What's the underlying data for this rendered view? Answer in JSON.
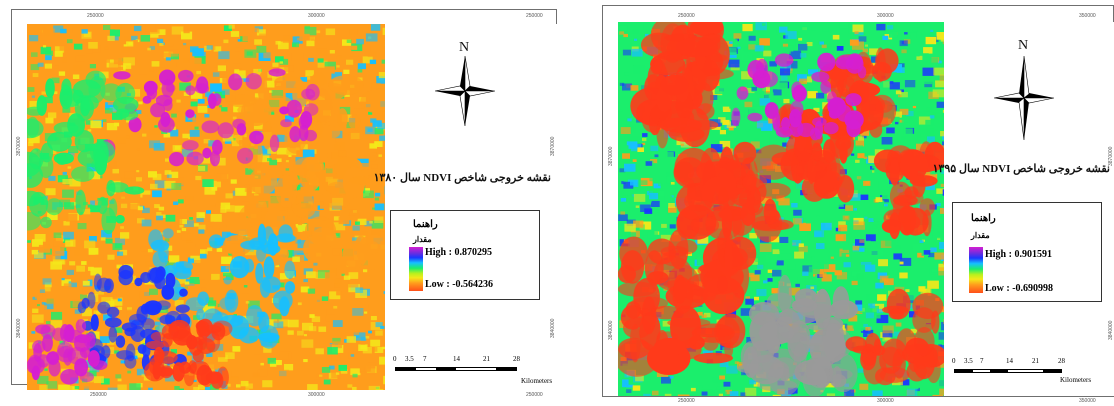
{
  "maps": [
    {
      "id": "ndvi_1380",
      "title": "نقشه خروجی شاخص NDVI سال ۱۳۸۰",
      "north": "N",
      "legend_title": "راهنما",
      "legend_subtitle": "مقدار",
      "high_label": "High : 0.870295",
      "low_label": "Low : -0.564236",
      "scale_numbers": [
        "0",
        "3.5",
        "7",
        "14",
        "21",
        "28"
      ],
      "scale_unit": "Kilometers",
      "x_ticks_top": [
        "250000",
        "300000",
        "250000"
      ],
      "x_ticks_bottom": [
        "250000",
        "300000",
        "250000"
      ],
      "y_ticks_left": [
        "3870000",
        "3840000"
      ],
      "y_ticks_right": [
        "3870000",
        "3840000"
      ]
    },
    {
      "id": "ndvi_1395",
      "title": "نقشه خروجی شاخص NDVI سال ۱۳۹۵",
      "north": "N",
      "legend_title": "راهنما",
      "legend_subtitle": "مقدار",
      "high_label": "High : 0.901591",
      "low_label": "Low : -0.690998",
      "scale_numbers": [
        "0",
        "3.5",
        "7",
        "14",
        "21",
        "28"
      ],
      "scale_unit": "Kilometers",
      "x_ticks_top": [
        "250000",
        "300000",
        "350000"
      ],
      "x_ticks_bottom": [
        "250000",
        "300000",
        "350000"
      ],
      "y_ticks_left": [
        "3870000",
        "3840000"
      ],
      "y_ticks_right": [
        "3870000",
        "3840000"
      ]
    }
  ],
  "colors": {
    "high": "#d51fd1",
    "mid_blue": "#1b36ff",
    "cyan": "#16c0ff",
    "green": "#1bee6c",
    "yellow": "#f4e81a",
    "orange": "#ff9d1c",
    "low": "#ff3a1a",
    "grey": "#9a9a9a"
  }
}
